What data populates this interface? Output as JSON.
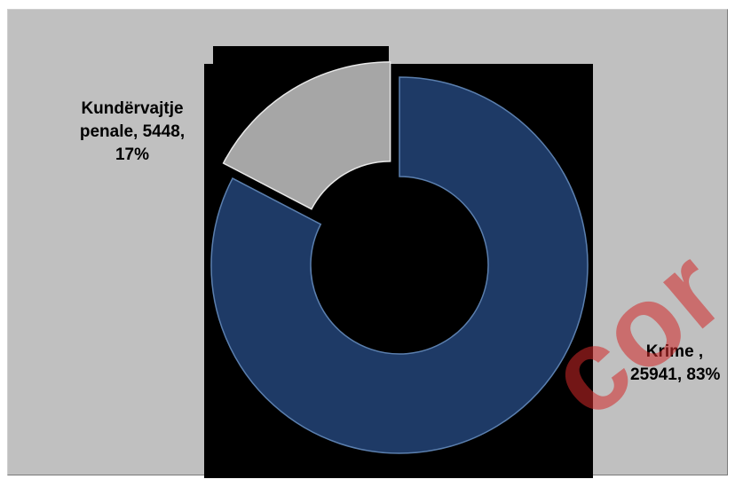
{
  "chart_data": {
    "type": "pie",
    "subtype": "donut",
    "slices": [
      {
        "name": "Krime",
        "value": 25941,
        "percent": 83,
        "color": "#1e3a66"
      },
      {
        "name": "Kundërvajtje penale",
        "value": 5448,
        "percent": 17,
        "color": "#a6a6a6",
        "exploded": true
      }
    ],
    "labels": {
      "small": [
        "Kundërvajtje",
        "penale, 5448,",
        "17%"
      ],
      "big": [
        "Krime ,",
        "25941, 83%"
      ]
    },
    "legend": "none",
    "plot_background": "#000000",
    "chart_background": "#c0c0c0"
  },
  "watermark": {
    "text": "cor",
    "color": "#d22828"
  }
}
